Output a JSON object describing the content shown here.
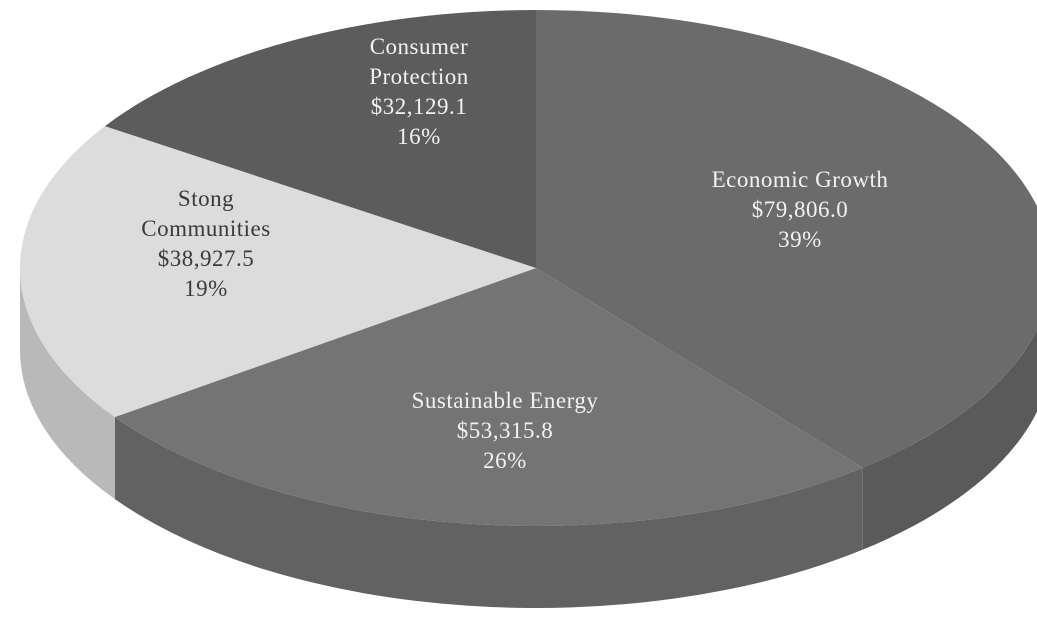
{
  "chart_data": {
    "type": "pie",
    "style": "3d-tilted",
    "title": "",
    "slices": [
      {
        "label_lines": [
          "Economic Growth"
        ],
        "value": 79806.0,
        "value_text": "$79,806.0",
        "percent_text": "39%",
        "color": "#6b6b6b",
        "side_color": "#5a5a5a",
        "text_color": "#f2f2f2"
      },
      {
        "label_lines": [
          "Sustainable Energy"
        ],
        "value": 53315.8,
        "value_text": "$53,315.8",
        "percent_text": "26%",
        "color": "#747474",
        "side_color": "#626262",
        "text_color": "#f2f2f2"
      },
      {
        "label_lines": [
          "Stong",
          "Communities"
        ],
        "value": 38927.5,
        "value_text": "$38,927.5",
        "percent_text": "19%",
        "color": "#dcdcdc",
        "side_color": "#b9b9b9",
        "text_color": "#3a3a3a"
      },
      {
        "label_lines": [
          "Consumer",
          "Protection"
        ],
        "value": 32129.1,
        "value_text": "$32,129.1",
        "percent_text": "16%",
        "color": "#5c5c5c",
        "side_color": "#4e4e4e",
        "text_color": "#f2f2f2"
      }
    ]
  }
}
